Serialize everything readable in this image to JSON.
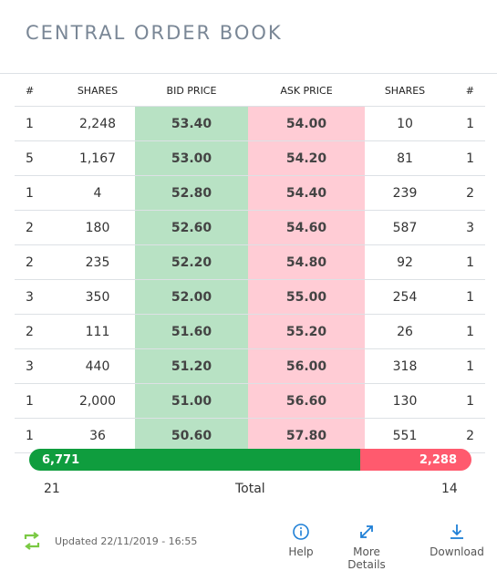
{
  "title": "CENTRAL ORDER BOOK",
  "headers": {
    "bid_count": "#",
    "bid_shares": "SHARES",
    "bid_price": "BID PRICE",
    "ask_price": "ASK PRICE",
    "ask_shares": "SHARES",
    "ask_count": "#"
  },
  "rows": [
    {
      "bid_count": "1",
      "bid_shares": "2,248",
      "bid_price": "53.40",
      "ask_price": "54.00",
      "ask_shares": "10",
      "ask_count": "1"
    },
    {
      "bid_count": "5",
      "bid_shares": "1,167",
      "bid_price": "53.00",
      "ask_price": "54.20",
      "ask_shares": "81",
      "ask_count": "1"
    },
    {
      "bid_count": "1",
      "bid_shares": "4",
      "bid_price": "52.80",
      "ask_price": "54.40",
      "ask_shares": "239",
      "ask_count": "2"
    },
    {
      "bid_count": "2",
      "bid_shares": "180",
      "bid_price": "52.60",
      "ask_price": "54.60",
      "ask_shares": "587",
      "ask_count": "3"
    },
    {
      "bid_count": "2",
      "bid_shares": "235",
      "bid_price": "52.20",
      "ask_price": "54.80",
      "ask_shares": "92",
      "ask_count": "1"
    },
    {
      "bid_count": "3",
      "bid_shares": "350",
      "bid_price": "52.00",
      "ask_price": "55.00",
      "ask_shares": "254",
      "ask_count": "1"
    },
    {
      "bid_count": "2",
      "bid_shares": "111",
      "bid_price": "51.60",
      "ask_price": "55.20",
      "ask_shares": "26",
      "ask_count": "1"
    },
    {
      "bid_count": "3",
      "bid_shares": "440",
      "bid_price": "51.20",
      "ask_price": "56.00",
      "ask_shares": "318",
      "ask_count": "1"
    },
    {
      "bid_count": "1",
      "bid_shares": "2,000",
      "bid_price": "51.00",
      "ask_price": "56.60",
      "ask_shares": "130",
      "ask_count": "1"
    },
    {
      "bid_count": "1",
      "bid_shares": "36",
      "bid_price": "50.60",
      "ask_price": "57.80",
      "ask_shares": "551",
      "ask_count": "2"
    }
  ],
  "summary": {
    "bid_total_shares": "6,771",
    "ask_total_shares": "2,288",
    "bid_share_fraction": 0.7475,
    "bid_total_orders": "21",
    "ask_total_orders": "14",
    "total_label": "Total"
  },
  "footer": {
    "updated": "Updated 22/11/2019 - 16:55",
    "refresh_icon": "refresh-icon",
    "help_label": "Help",
    "help_icon": "info-icon",
    "details_label": "More Details",
    "details_icon": "expand-icon",
    "download_label": "Download",
    "download_icon": "download-icon"
  },
  "colors": {
    "bid_cell": "#b8e2c4",
    "ask_cell": "#ffccd5",
    "bid_bar": "#0f9d3e",
    "ask_bar": "#ff5a6e",
    "accent": "#1e7fd6",
    "refresh": "#7ac943"
  }
}
